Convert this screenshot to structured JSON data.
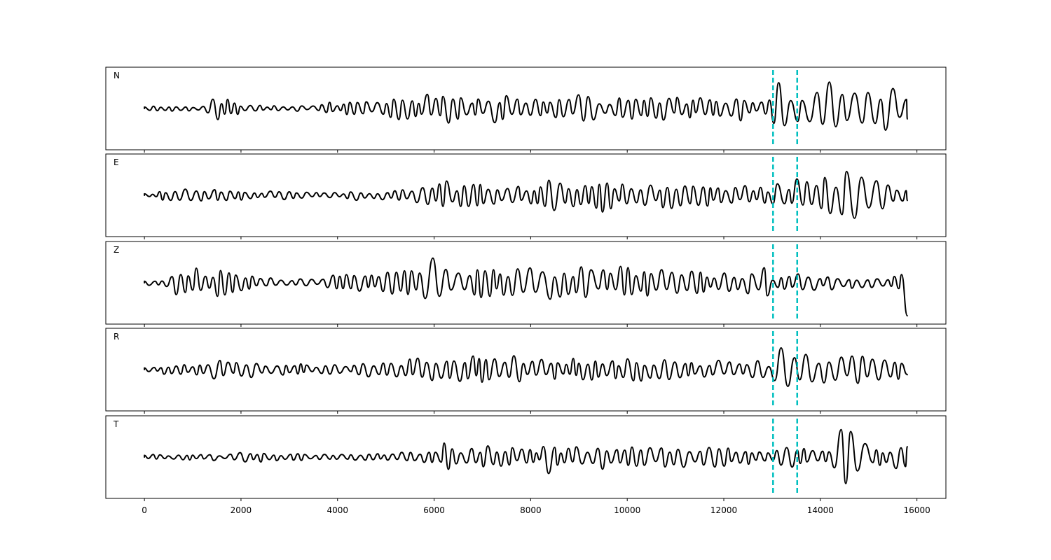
{
  "chart_data": {
    "type": "line",
    "shared_x_axis": true,
    "xlim": [
      -800,
      16600
    ],
    "x_ticks": [
      0,
      2000,
      4000,
      6000,
      8000,
      10000,
      12000,
      14000,
      16000
    ],
    "x_tick_labels": [
      "0",
      "2000",
      "4000",
      "6000",
      "8000",
      "10000",
      "12000",
      "14000",
      "16000"
    ],
    "trace_x_range": [
      0,
      15800
    ],
    "markers": {
      "color": "#00bfbf",
      "style": "dashed",
      "x": [
        13020,
        13520
      ]
    },
    "trace_color": "#000000",
    "panels": [
      {
        "label": "N",
        "y_ticks_visible": false,
        "waveform": [
          [
            0,
            0.0
          ],
          [
            400,
            0.05
          ],
          [
            800,
            -0.05
          ],
          [
            1200,
            0.1
          ],
          [
            1500,
            0.4
          ],
          [
            1600,
            -0.3
          ],
          [
            1800,
            0.35
          ],
          [
            2000,
            -0.1
          ],
          [
            2400,
            0.1
          ],
          [
            2800,
            0.05
          ],
          [
            3200,
            -0.05
          ],
          [
            3600,
            0.05
          ],
          [
            3800,
            0.3
          ],
          [
            4000,
            -0.1
          ],
          [
            4400,
            0.25
          ],
          [
            4700,
            -0.2
          ],
          [
            5000,
            0.3
          ],
          [
            5400,
            -0.35
          ],
          [
            5700,
            -0.4
          ],
          [
            5900,
            0.45
          ],
          [
            6100,
            -0.35
          ],
          [
            6500,
            0.5
          ],
          [
            6800,
            -0.3
          ],
          [
            7000,
            0.35
          ],
          [
            7200,
            -0.65
          ],
          [
            7400,
            0.4
          ],
          [
            7700,
            -0.3
          ],
          [
            8000,
            0.4
          ],
          [
            8300,
            -0.3
          ],
          [
            8600,
            0.25
          ],
          [
            9000,
            -0.4
          ],
          [
            9400,
            0.35
          ],
          [
            9700,
            -0.3
          ],
          [
            10000,
            0.35
          ],
          [
            10400,
            -0.3
          ],
          [
            10800,
            0.35
          ],
          [
            11200,
            -0.3
          ],
          [
            11600,
            0.35
          ],
          [
            12000,
            -0.2
          ],
          [
            12300,
            0.4
          ],
          [
            12700,
            -0.15
          ],
          [
            12950,
            0.25
          ],
          [
            13200,
            -1.0
          ],
          [
            13350,
            0.6
          ],
          [
            13500,
            -0.4
          ],
          [
            13650,
            0.7
          ],
          [
            13800,
            -0.65
          ],
          [
            14000,
            0.55
          ],
          [
            14200,
            -0.8
          ],
          [
            14400,
            0.7
          ],
          [
            14600,
            -0.5
          ],
          [
            14800,
            0.8
          ],
          [
            15000,
            -0.75
          ],
          [
            15200,
            0.5
          ],
          [
            15400,
            -0.7
          ],
          [
            15600,
            0.8
          ],
          [
            15800,
            -0.3
          ]
        ]
      },
      {
        "label": "E",
        "y_ticks_visible": false,
        "waveform": [
          [
            0,
            0.0
          ],
          [
            400,
            0.15
          ],
          [
            800,
            -0.2
          ],
          [
            1200,
            0.2
          ],
          [
            1600,
            -0.15
          ],
          [
            2000,
            0.15
          ],
          [
            2400,
            -0.1
          ],
          [
            2800,
            0.15
          ],
          [
            3200,
            -0.1
          ],
          [
            3600,
            0.1
          ],
          [
            4000,
            -0.05
          ],
          [
            4400,
            0.15
          ],
          [
            4800,
            -0.1
          ],
          [
            5200,
            0.2
          ],
          [
            5600,
            -0.15
          ],
          [
            5800,
            0.45
          ],
          [
            6000,
            -0.3
          ],
          [
            6200,
            0.45
          ],
          [
            6500,
            -0.35
          ],
          [
            6800,
            0.45
          ],
          [
            7000,
            -0.5
          ],
          [
            7400,
            0.35
          ],
          [
            7800,
            -0.3
          ],
          [
            8200,
            0.35
          ],
          [
            8400,
            -0.55
          ],
          [
            8800,
            0.35
          ],
          [
            9200,
            -0.35
          ],
          [
            9500,
            0.55
          ],
          [
            9800,
            -0.3
          ],
          [
            10200,
            0.4
          ],
          [
            10600,
            -0.35
          ],
          [
            11000,
            0.4
          ],
          [
            11400,
            -0.3
          ],
          [
            11800,
            0.35
          ],
          [
            12200,
            -0.25
          ],
          [
            12600,
            0.3
          ],
          [
            12950,
            -0.2
          ],
          [
            13100,
            0.8
          ],
          [
            13300,
            -0.15
          ],
          [
            13500,
            0.6
          ],
          [
            13600,
            -0.55
          ],
          [
            13800,
            0.3
          ],
          [
            14000,
            -0.45
          ],
          [
            14200,
            0.7
          ],
          [
            14400,
            -0.55
          ],
          [
            14600,
            0.75
          ],
          [
            14800,
            -0.8
          ],
          [
            15000,
            0.55
          ],
          [
            15200,
            -0.45
          ],
          [
            15500,
            0.3
          ],
          [
            15700,
            -0.2
          ],
          [
            15800,
            -0.15
          ]
        ]
      },
      {
        "label": "Z",
        "y_ticks_visible": false,
        "waveform": [
          [
            0,
            0.0
          ],
          [
            200,
            0.05
          ],
          [
            400,
            -0.05
          ],
          [
            600,
            0.45
          ],
          [
            800,
            -0.35
          ],
          [
            1000,
            0.35
          ],
          [
            1100,
            -0.55
          ],
          [
            1300,
            0.25
          ],
          [
            1600,
            0.5
          ],
          [
            1800,
            -0.35
          ],
          [
            2000,
            0.25
          ],
          [
            2400,
            -0.15
          ],
          [
            2800,
            0.2
          ],
          [
            3200,
            -0.15
          ],
          [
            3600,
            0.1
          ],
          [
            4000,
            0.3
          ],
          [
            4400,
            -0.25
          ],
          [
            4800,
            0.3
          ],
          [
            5200,
            -0.35
          ],
          [
            5600,
            0.45
          ],
          [
            5800,
            -0.6
          ],
          [
            6000,
            0.85
          ],
          [
            6200,
            -0.5
          ],
          [
            6500,
            0.55
          ],
          [
            6800,
            -0.45
          ],
          [
            7200,
            0.5
          ],
          [
            7500,
            -0.4
          ],
          [
            7800,
            0.55
          ],
          [
            8000,
            -0.65
          ],
          [
            8400,
            0.5
          ],
          [
            8800,
            -0.4
          ],
          [
            9200,
            0.55
          ],
          [
            9600,
            -0.45
          ],
          [
            10000,
            0.5
          ],
          [
            10400,
            -0.4
          ],
          [
            10800,
            0.45
          ],
          [
            11200,
            -0.35
          ],
          [
            11600,
            0.3
          ],
          [
            12000,
            -0.3
          ],
          [
            12400,
            0.25
          ],
          [
            12600,
            0.55
          ],
          [
            12800,
            -0.55
          ],
          [
            13000,
            0.2
          ],
          [
            13400,
            -0.25
          ],
          [
            13600,
            0.35
          ],
          [
            14000,
            -0.2
          ],
          [
            14400,
            0.2
          ],
          [
            14800,
            -0.15
          ],
          [
            15200,
            0.15
          ],
          [
            15500,
            -0.1
          ],
          [
            15700,
            0.7
          ],
          [
            15800,
            -0.95
          ]
        ]
      },
      {
        "label": "R",
        "y_ticks_visible": false,
        "waveform": [
          [
            0,
            0.0
          ],
          [
            400,
            0.15
          ],
          [
            800,
            -0.15
          ],
          [
            1200,
            0.2
          ],
          [
            1500,
            0.3
          ],
          [
            1600,
            -0.3
          ],
          [
            1800,
            0.3
          ],
          [
            2000,
            -0.2
          ],
          [
            2400,
            0.25
          ],
          [
            2800,
            -0.15
          ],
          [
            3200,
            0.2
          ],
          [
            3600,
            -0.1
          ],
          [
            4000,
            0.15
          ],
          [
            4400,
            -0.15
          ],
          [
            4800,
            0.25
          ],
          [
            5200,
            -0.25
          ],
          [
            5700,
            -0.4
          ],
          [
            5900,
            0.4
          ],
          [
            6200,
            -0.35
          ],
          [
            6500,
            0.35
          ],
          [
            6900,
            0.45
          ],
          [
            7100,
            -0.3
          ],
          [
            7400,
            -0.5
          ],
          [
            7800,
            0.35
          ],
          [
            8200,
            -0.3
          ],
          [
            8600,
            0.3
          ],
          [
            9000,
            -0.4
          ],
          [
            9400,
            0.35
          ],
          [
            9800,
            -0.3
          ],
          [
            10200,
            0.35
          ],
          [
            10600,
            -0.3
          ],
          [
            11000,
            0.3
          ],
          [
            11400,
            -0.25
          ],
          [
            11800,
            0.3
          ],
          [
            12200,
            -0.2
          ],
          [
            12600,
            0.3
          ],
          [
            12950,
            -0.2
          ],
          [
            13150,
            -1.0
          ],
          [
            13300,
            0.6
          ],
          [
            13500,
            -0.5
          ],
          [
            13650,
            0.6
          ],
          [
            13800,
            -0.55
          ],
          [
            14000,
            0.45
          ],
          [
            14200,
            -0.6
          ],
          [
            14500,
            0.5
          ],
          [
            14800,
            -0.4
          ],
          [
            15000,
            0.6
          ],
          [
            15200,
            -0.7
          ],
          [
            15500,
            0.45
          ],
          [
            15700,
            -0.35
          ],
          [
            15800,
            -0.15
          ]
        ]
      },
      {
        "label": "T",
        "y_ticks_visible": false,
        "waveform": [
          [
            0,
            0.0
          ],
          [
            400,
            0.05
          ],
          [
            800,
            -0.05
          ],
          [
            1200,
            0.1
          ],
          [
            1600,
            -0.1
          ],
          [
            2000,
            0.15
          ],
          [
            2400,
            -0.15
          ],
          [
            2800,
            0.1
          ],
          [
            3200,
            -0.1
          ],
          [
            3600,
            0.1
          ],
          [
            4000,
            -0.05
          ],
          [
            4400,
            0.1
          ],
          [
            4800,
            -0.1
          ],
          [
            5200,
            0.15
          ],
          [
            5600,
            -0.15
          ],
          [
            6000,
            0.2
          ],
          [
            6200,
            -0.45
          ],
          [
            6600,
            0.3
          ],
          [
            7000,
            -0.35
          ],
          [
            7400,
            0.3
          ],
          [
            7800,
            -0.25
          ],
          [
            8200,
            0.2
          ],
          [
            8400,
            0.65
          ],
          [
            8600,
            -0.3
          ],
          [
            9000,
            0.35
          ],
          [
            9400,
            -0.35
          ],
          [
            9800,
            0.35
          ],
          [
            10200,
            -0.3
          ],
          [
            10600,
            0.3
          ],
          [
            11000,
            -0.3
          ],
          [
            11400,
            0.35
          ],
          [
            11800,
            -0.3
          ],
          [
            12200,
            0.3
          ],
          [
            12600,
            -0.2
          ],
          [
            12950,
            0.2
          ],
          [
            13300,
            -0.3
          ],
          [
            13600,
            0.35
          ],
          [
            13800,
            -0.2
          ],
          [
            14000,
            0.25
          ],
          [
            14200,
            -0.35
          ],
          [
            14400,
            0.95
          ],
          [
            14450,
            -0.95
          ],
          [
            14600,
            0.9
          ],
          [
            14800,
            -0.7
          ],
          [
            15000,
            0.45
          ],
          [
            15200,
            -0.3
          ],
          [
            15400,
            0.3
          ],
          [
            15600,
            -0.6
          ],
          [
            15700,
            0.35
          ],
          [
            15800,
            0.3
          ]
        ]
      }
    ]
  }
}
